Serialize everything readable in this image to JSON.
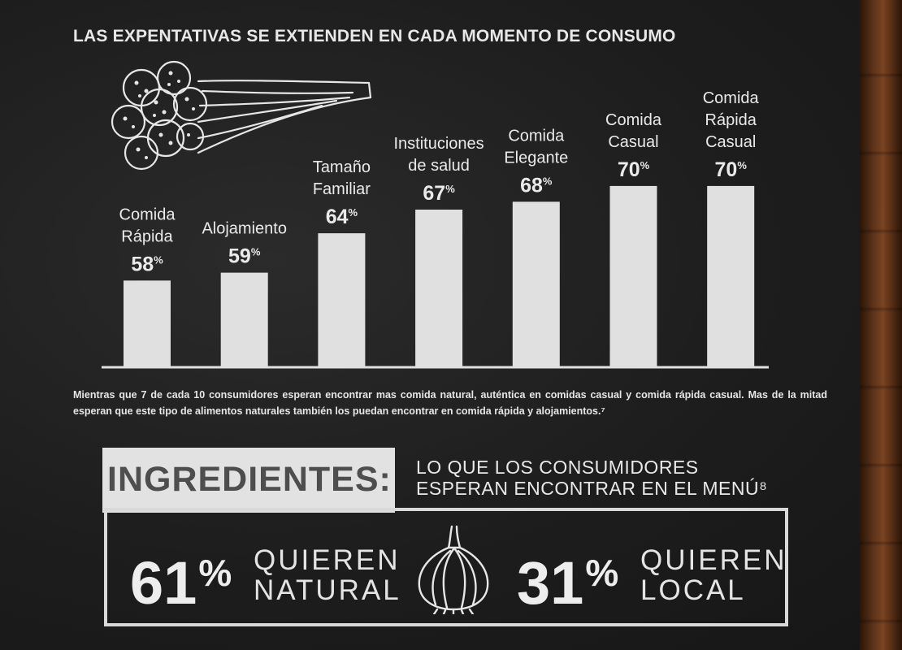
{
  "header": {
    "title": "LAS EXPENTATIVAS SE EXTIENDEN EN CADA MOMENTO DE CONSUMO"
  },
  "chart_data": {
    "type": "bar",
    "title": "LAS EXPENTATIVAS SE EXTIENDEN EN CADA MOMENTO DE CONSUMO",
    "categories": [
      [
        "Comida",
        "Rápida"
      ],
      [
        "Alojamiento"
      ],
      [
        "Tamaño",
        "Familiar"
      ],
      [
        "Instituciones",
        "de salud"
      ],
      [
        "Comida",
        "Elegante"
      ],
      [
        "Comida",
        "Casual"
      ],
      [
        "Comida",
        "Rápida",
        "Casual"
      ]
    ],
    "values": [
      58,
      59,
      64,
      67,
      68,
      70,
      70
    ],
    "value_labels": [
      "58",
      "59",
      "64",
      "67",
      "68",
      "70",
      "70"
    ],
    "value_suffix": "%",
    "unit": "%",
    "xlabel": "",
    "ylabel": "",
    "grid": false,
    "legend": "none",
    "colors": {
      "bar": "#e0e0e0",
      "baseline": "#e0e0e0",
      "text": "#eaeaea"
    }
  },
  "note": {
    "text": "Mientras que 7 de cada 10 consumidores esperan encontrar mas comida natural, auténtica en comidas casual y comida rápida casual. Mas de la mitad esperan que este tipo de alimentos naturales también los puedan encontrar en comida rápida y alojamientos.⁷"
  },
  "ingredients": {
    "label": "INGREDIENTES:",
    "subtitle_line1": "LO QUE LOS CONSUMIDORES",
    "subtitle_line2": "ESPERAN ENCONTRAR EN EL MENÚ⁸",
    "stats": [
      {
        "value": "61",
        "sign": "%",
        "line1": "QUIEREN",
        "line2": "NATURAL"
      },
      {
        "value": "31",
        "sign": "%",
        "line1": "QUIEREN",
        "line2": "LOCAL"
      }
    ]
  },
  "icons": {
    "broccoli": "broccoli-icon",
    "garlic": "garlic-icon"
  },
  "colors": {
    "background": "#1d1d1d",
    "chalk": "#e8e8e8",
    "tab": "#e2e2e2",
    "tab_text": "#4e4e4e",
    "wood": "#5a3017"
  }
}
